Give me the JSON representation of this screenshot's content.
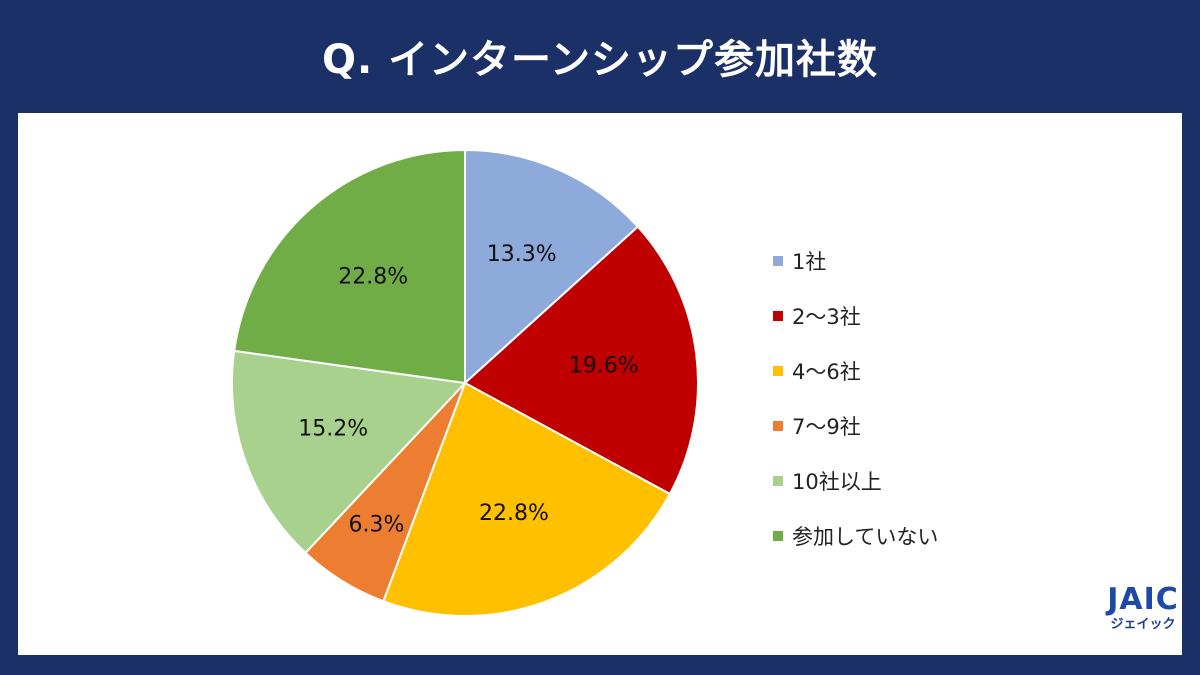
{
  "header": {
    "title": "Q. インターンシップ参加社数"
  },
  "logo": {
    "mark": "JAIC",
    "sub": "ジェイック"
  },
  "chart_data": {
    "type": "pie",
    "title": "Q. インターンシップ参加社数",
    "legend_position": "right",
    "slices": [
      {
        "label": "1社",
        "value": 13.3,
        "display": "13.3%",
        "color": "#8eaadb"
      },
      {
        "label": "2～3社",
        "value": 19.6,
        "display": "19.6%",
        "color": "#c00000"
      },
      {
        "label": "4～6社",
        "value": 22.8,
        "display": "22.8%",
        "color": "#ffc000"
      },
      {
        "label": "7～9社",
        "value": 6.3,
        "display": "6.3%",
        "color": "#ed7d31"
      },
      {
        "label": "10社以上",
        "value": 15.2,
        "display": "15.2%",
        "color": "#a9d18e"
      },
      {
        "label": "参加していない",
        "value": 22.8,
        "display": "22.8%",
        "color": "#70ad47"
      }
    ]
  }
}
